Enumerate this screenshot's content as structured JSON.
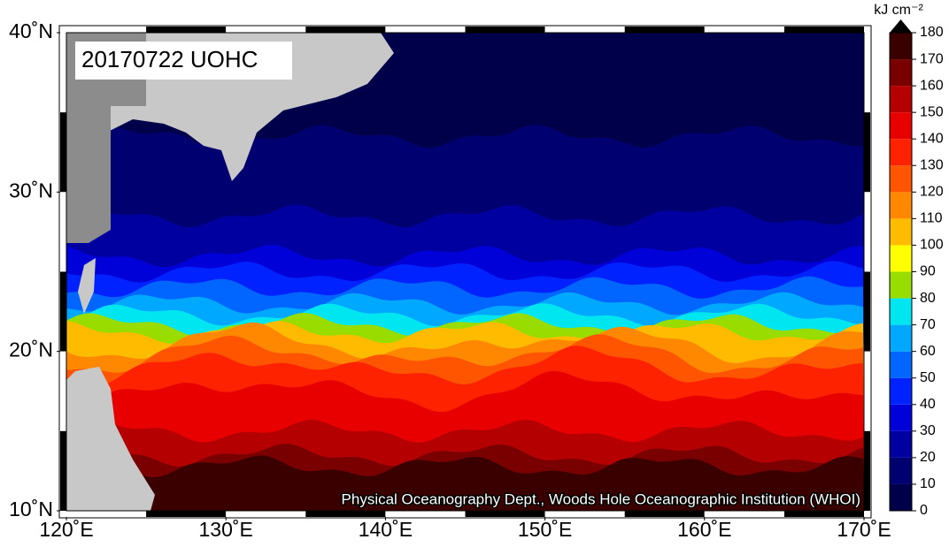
{
  "title": "20170722 UOHC",
  "credit": "Physical Oceanography Dept., Woods Hole Oceanographic Institution (WHOI)",
  "x_axis": {
    "lim": [
      120,
      170
    ],
    "ticks": [
      {
        "value": 120,
        "label": "120˚E"
      },
      {
        "value": 130,
        "label": "130˚E"
      },
      {
        "value": 140,
        "label": "140˚E"
      },
      {
        "value": 150,
        "label": "150˚E"
      },
      {
        "value": 160,
        "label": "160˚E"
      },
      {
        "value": 170,
        "label": "170˚E"
      }
    ]
  },
  "y_axis": {
    "lim": [
      10,
      40
    ],
    "ticks": [
      {
        "value": 10,
        "label": "10˚N"
      },
      {
        "value": 20,
        "label": "20˚N"
      },
      {
        "value": 30,
        "label": "30˚N"
      },
      {
        "value": 40,
        "label": "40˚N"
      }
    ]
  },
  "colorbar": {
    "unit": "kJ cm⁻²",
    "lim": [
      0,
      180
    ],
    "ticks": [
      0,
      10,
      20,
      30,
      40,
      50,
      60,
      70,
      80,
      90,
      100,
      110,
      120,
      130,
      140,
      150,
      160,
      170,
      180
    ],
    "colors": [
      "#00004a",
      "#000070",
      "#0000a0",
      "#0000d8",
      "#0022ff",
      "#0066ff",
      "#00a8ff",
      "#00e6f0",
      "#99dd00",
      "#ffff00",
      "#ffbb00",
      "#ff8800",
      "#ff5500",
      "#ff2200",
      "#e80000",
      "#b40000",
      "#7a0000",
      "#3a0000"
    ]
  }
}
